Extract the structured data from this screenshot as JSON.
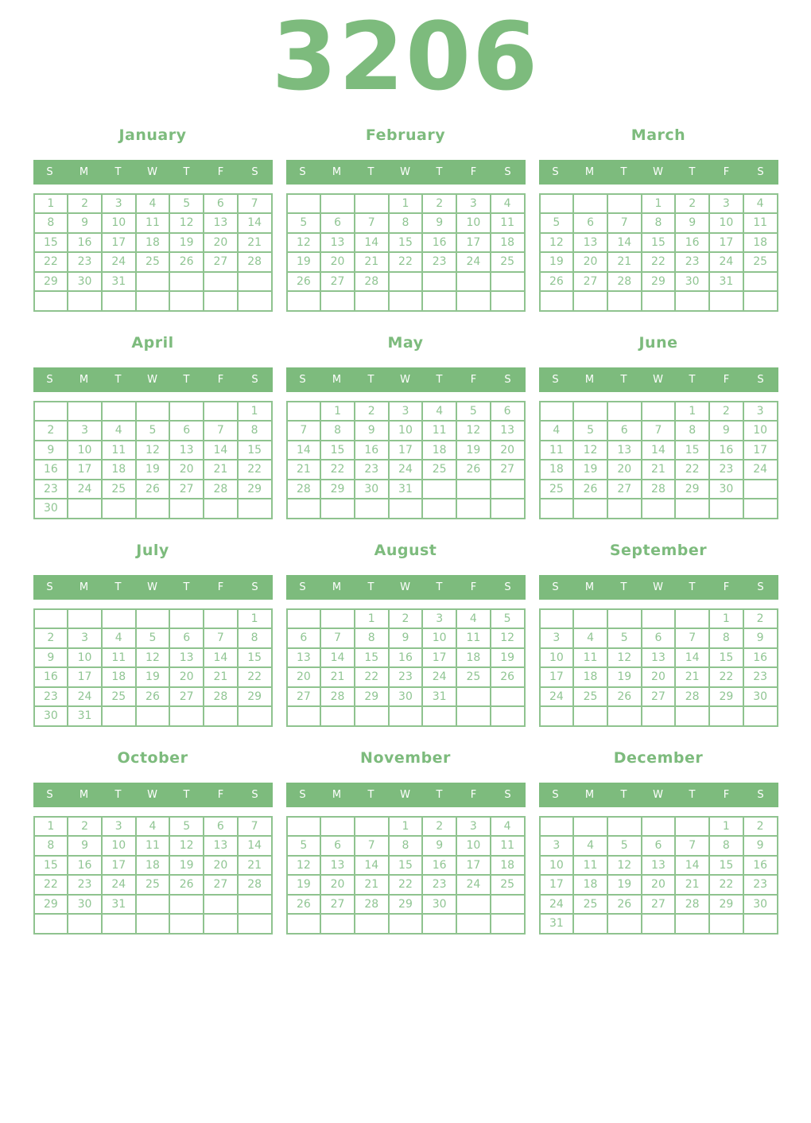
{
  "page": {
    "title": "3206"
  },
  "weekday_labels": [
    "S",
    "M",
    "T",
    "W",
    "T",
    "F",
    "S"
  ],
  "colors": {
    "accent": "#7dbb7d",
    "date_text": "#90c593",
    "grid_border_inner": "#8fc38f",
    "grid_border_outer": "#b9dab9",
    "weekday_text": "#ffffff",
    "background": "#ffffff"
  },
  "months": [
    {
      "name": "January",
      "rows": [
        [
          "1",
          "2",
          "3",
          "4",
          "5",
          "6",
          "7"
        ],
        [
          "8",
          "9",
          "10",
          "11",
          "12",
          "13",
          "14"
        ],
        [
          "15",
          "16",
          "17",
          "18",
          "19",
          "20",
          "21"
        ],
        [
          "22",
          "23",
          "24",
          "25",
          "26",
          "27",
          "28"
        ],
        [
          "29",
          "30",
          "31",
          "",
          "",
          "",
          ""
        ],
        [
          "",
          "",
          "",
          "",
          "",
          "",
          ""
        ]
      ]
    },
    {
      "name": "February",
      "rows": [
        [
          "",
          "",
          "",
          "1",
          "2",
          "3",
          "4"
        ],
        [
          "5",
          "6",
          "7",
          "8",
          "9",
          "10",
          "11"
        ],
        [
          "12",
          "13",
          "14",
          "15",
          "16",
          "17",
          "18"
        ],
        [
          "19",
          "20",
          "21",
          "22",
          "23",
          "24",
          "25"
        ],
        [
          "26",
          "27",
          "28",
          "",
          "",
          "",
          ""
        ],
        [
          "",
          "",
          "",
          "",
          "",
          "",
          ""
        ]
      ]
    },
    {
      "name": "March",
      "rows": [
        [
          "",
          "",
          "",
          "1",
          "2",
          "3",
          "4"
        ],
        [
          "5",
          "6",
          "7",
          "8",
          "9",
          "10",
          "11"
        ],
        [
          "12",
          "13",
          "14",
          "15",
          "16",
          "17",
          "18"
        ],
        [
          "19",
          "20",
          "21",
          "22",
          "23",
          "24",
          "25"
        ],
        [
          "26",
          "27",
          "28",
          "29",
          "30",
          "31",
          ""
        ],
        [
          "",
          "",
          "",
          "",
          "",
          "",
          ""
        ]
      ]
    },
    {
      "name": "April",
      "rows": [
        [
          "",
          "",
          "",
          "",
          "",
          "",
          "1"
        ],
        [
          "2",
          "3",
          "4",
          "5",
          "6",
          "7",
          "8"
        ],
        [
          "9",
          "10",
          "11",
          "12",
          "13",
          "14",
          "15"
        ],
        [
          "16",
          "17",
          "18",
          "19",
          "20",
          "21",
          "22"
        ],
        [
          "23",
          "24",
          "25",
          "26",
          "27",
          "28",
          "29"
        ],
        [
          "30",
          "",
          "",
          "",
          "",
          "",
          ""
        ]
      ]
    },
    {
      "name": "May",
      "rows": [
        [
          "",
          "1",
          "2",
          "3",
          "4",
          "5",
          "6"
        ],
        [
          "7",
          "8",
          "9",
          "10",
          "11",
          "12",
          "13"
        ],
        [
          "14",
          "15",
          "16",
          "17",
          "18",
          "19",
          "20"
        ],
        [
          "21",
          "22",
          "23",
          "24",
          "25",
          "26",
          "27"
        ],
        [
          "28",
          "29",
          "30",
          "31",
          "",
          "",
          ""
        ],
        [
          "",
          "",
          "",
          "",
          "",
          "",
          ""
        ]
      ]
    },
    {
      "name": "June",
      "rows": [
        [
          "",
          "",
          "",
          "",
          "1",
          "2",
          "3"
        ],
        [
          "4",
          "5",
          "6",
          "7",
          "8",
          "9",
          "10"
        ],
        [
          "11",
          "12",
          "13",
          "14",
          "15",
          "16",
          "17"
        ],
        [
          "18",
          "19",
          "20",
          "21",
          "22",
          "23",
          "24"
        ],
        [
          "25",
          "26",
          "27",
          "28",
          "29",
          "30",
          ""
        ],
        [
          "",
          "",
          "",
          "",
          "",
          "",
          ""
        ]
      ]
    },
    {
      "name": "July",
      "rows": [
        [
          "",
          "",
          "",
          "",
          "",
          "",
          "1"
        ],
        [
          "2",
          "3",
          "4",
          "5",
          "6",
          "7",
          "8"
        ],
        [
          "9",
          "10",
          "11",
          "12",
          "13",
          "14",
          "15"
        ],
        [
          "16",
          "17",
          "18",
          "19",
          "20",
          "21",
          "22"
        ],
        [
          "23",
          "24",
          "25",
          "26",
          "27",
          "28",
          "29"
        ],
        [
          "30",
          "31",
          "",
          "",
          "",
          "",
          ""
        ]
      ]
    },
    {
      "name": "August",
      "rows": [
        [
          "",
          "",
          "1",
          "2",
          "3",
          "4",
          "5"
        ],
        [
          "6",
          "7",
          "8",
          "9",
          "10",
          "11",
          "12"
        ],
        [
          "13",
          "14",
          "15",
          "16",
          "17",
          "18",
          "19"
        ],
        [
          "20",
          "21",
          "22",
          "23",
          "24",
          "25",
          "26"
        ],
        [
          "27",
          "28",
          "29",
          "30",
          "31",
          "",
          ""
        ],
        [
          "",
          "",
          "",
          "",
          "",
          "",
          ""
        ]
      ]
    },
    {
      "name": "September",
      "rows": [
        [
          "",
          "",
          "",
          "",
          "",
          "1",
          "2"
        ],
        [
          "3",
          "4",
          "5",
          "6",
          "7",
          "8",
          "9"
        ],
        [
          "10",
          "11",
          "12",
          "13",
          "14",
          "15",
          "16"
        ],
        [
          "17",
          "18",
          "19",
          "20",
          "21",
          "22",
          "23"
        ],
        [
          "24",
          "25",
          "26",
          "27",
          "28",
          "29",
          "30"
        ],
        [
          "",
          "",
          "",
          "",
          "",
          "",
          ""
        ]
      ]
    },
    {
      "name": "October",
      "rows": [
        [
          "1",
          "2",
          "3",
          "4",
          "5",
          "6",
          "7"
        ],
        [
          "8",
          "9",
          "10",
          "11",
          "12",
          "13",
          "14"
        ],
        [
          "15",
          "16",
          "17",
          "18",
          "19",
          "20",
          "21"
        ],
        [
          "22",
          "23",
          "24",
          "25",
          "26",
          "27",
          "28"
        ],
        [
          "29",
          "30",
          "31",
          "",
          "",
          "",
          ""
        ],
        [
          "",
          "",
          "",
          "",
          "",
          "",
          ""
        ]
      ]
    },
    {
      "name": "November",
      "rows": [
        [
          "",
          "",
          "",
          "1",
          "2",
          "3",
          "4"
        ],
        [
          "5",
          "6",
          "7",
          "8",
          "9",
          "10",
          "11"
        ],
        [
          "12",
          "13",
          "14",
          "15",
          "16",
          "17",
          "18"
        ],
        [
          "19",
          "20",
          "21",
          "22",
          "23",
          "24",
          "25"
        ],
        [
          "26",
          "27",
          "28",
          "29",
          "30",
          "",
          ""
        ],
        [
          "",
          "",
          "",
          "",
          "",
          "",
          ""
        ]
      ]
    },
    {
      "name": "December",
      "rows": [
        [
          "",
          "",
          "",
          "",
          "",
          "1",
          "2"
        ],
        [
          "3",
          "4",
          "5",
          "6",
          "7",
          "8",
          "9"
        ],
        [
          "10",
          "11",
          "12",
          "13",
          "14",
          "15",
          "16"
        ],
        [
          "17",
          "18",
          "19",
          "20",
          "21",
          "22",
          "23"
        ],
        [
          "24",
          "25",
          "26",
          "27",
          "28",
          "29",
          "30"
        ],
        [
          "31",
          "",
          "",
          "",
          "",
          "",
          ""
        ]
      ]
    }
  ]
}
